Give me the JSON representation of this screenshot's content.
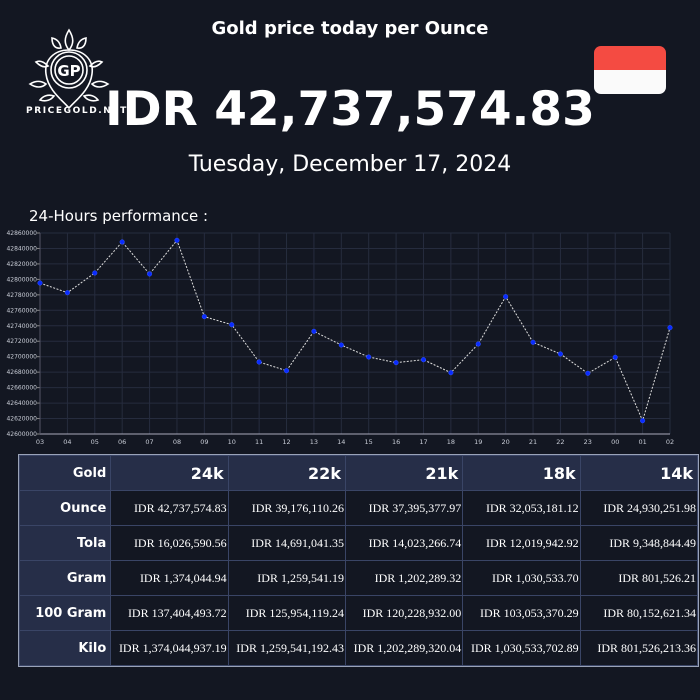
{
  "header": {
    "title": "Gold price today per Ounce",
    "logo_text": "PRICEGOLD.NET",
    "logo_initials": "GP",
    "price": "IDR 42,737,574.83",
    "date": "Tuesday, December 17, 2024",
    "flag": "indonesia-flag"
  },
  "colors": {
    "background": "#131722",
    "header_cell": "#262e48",
    "flag_red": "#f44b42",
    "flag_white": "#fafafa",
    "point": "#0a2cff",
    "line": "#dddddd",
    "grid": "#262c3e"
  },
  "chart_title": "24-Hours performance :",
  "chart_data": {
    "type": "line",
    "categories": [
      "03",
      "04",
      "05",
      "06",
      "07",
      "08",
      "09",
      "10",
      "11",
      "12",
      "13",
      "14",
      "15",
      "16",
      "17",
      "18",
      "19",
      "20",
      "21",
      "22",
      "23",
      "00",
      "01",
      "02"
    ],
    "values": [
      42795300,
      42782800,
      42808300,
      42848400,
      42807000,
      42850500,
      42751800,
      42741400,
      42693100,
      42681900,
      42732800,
      42715100,
      42699600,
      42692300,
      42696100,
      42679300,
      42716400,
      42777600,
      42718600,
      42703500,
      42678500,
      42699200,
      42617200,
      42737575
    ],
    "ylim": [
      42600000,
      42860000
    ],
    "yticks": [
      42600000,
      42620000,
      42640000,
      42660000,
      42680000,
      42700000,
      42720000,
      42740000,
      42760000,
      42780000,
      42800000,
      42820000,
      42840000,
      42860000
    ],
    "grid": true,
    "line_style": "dashed"
  },
  "table": {
    "corner": "Gold",
    "columns": [
      "24k",
      "22k",
      "21k",
      "18k",
      "14k"
    ],
    "rows": [
      {
        "label": "Ounce",
        "values": [
          "IDR 42,737,574.83",
          "IDR 39,176,110.26",
          "IDR 37,395,377.97",
          "IDR 32,053,181.12",
          "IDR 24,930,251.98"
        ]
      },
      {
        "label": "Tola",
        "values": [
          "IDR 16,026,590.56",
          "IDR 14,691,041.35",
          "IDR 14,023,266.74",
          "IDR 12,019,942.92",
          "IDR 9,348,844.49"
        ]
      },
      {
        "label": "Gram",
        "values": [
          "IDR 1,374,044.94",
          "IDR 1,259,541.19",
          "IDR 1,202,289.32",
          "IDR 1,030,533.70",
          "IDR 801,526.21"
        ]
      },
      {
        "label": "100 Gram",
        "values": [
          "IDR 137,404,493.72",
          "IDR 125,954,119.24",
          "IDR 120,228,932.00",
          "IDR 103,053,370.29",
          "IDR 80,152,621.34"
        ]
      },
      {
        "label": "Kilo",
        "values": [
          "IDR 1,374,044,937.19",
          "IDR 1,259,541,192.43",
          "IDR 1,202,289,320.04",
          "IDR 1,030,533,702.89",
          "IDR 801,526,213.36"
        ]
      }
    ]
  }
}
